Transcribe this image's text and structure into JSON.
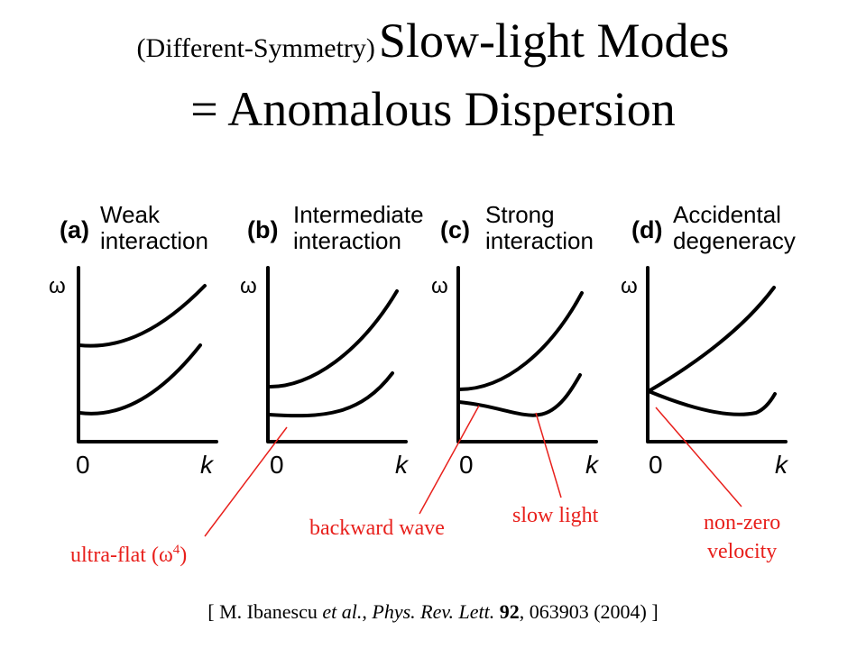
{
  "title": {
    "prefix": "(Different-Symmetry)",
    "main": "Slow-light Modes",
    "line2": "= Anomalous Dispersion"
  },
  "panels": [
    {
      "tag": "(a)",
      "caption_line1": "Weak",
      "caption_line2": "interaction",
      "y_axis": "ω",
      "x_zero": "0",
      "x_axis": "k"
    },
    {
      "tag": "(b)",
      "caption_line1": "Intermediate",
      "caption_line2": "interaction",
      "y_axis": "ω",
      "x_zero": "0",
      "x_axis": "k"
    },
    {
      "tag": "(c)",
      "caption_line1": "Strong",
      "caption_line2": "interaction",
      "y_axis": "ω",
      "x_zero": "0",
      "x_axis": "k"
    },
    {
      "tag": "(d)",
      "caption_line1": "Accidental",
      "caption_line2": "degeneracy",
      "y_axis": "ω",
      "x_zero": "0",
      "x_axis": "k"
    }
  ],
  "callouts": {
    "ultra_flat": "ultra-flat (ω",
    "ultra_flat_sup": "4",
    "ultra_flat_close": ")",
    "backward_wave": "backward wave",
    "slow_light": "slow light",
    "non_zero_line1": "non-zero",
    "non_zero_line2": "velocity"
  },
  "citation": {
    "open": "[ M. Ibanescu ",
    "etal": "et al.",
    "sep1": ", ",
    "journal": "Phys. Rev. Lett.",
    "sep2": " ",
    "volume": "92",
    "rest": ", 063903 (2004) ]"
  },
  "colors": {
    "curve": "#000000",
    "callout": "#e8201c"
  }
}
